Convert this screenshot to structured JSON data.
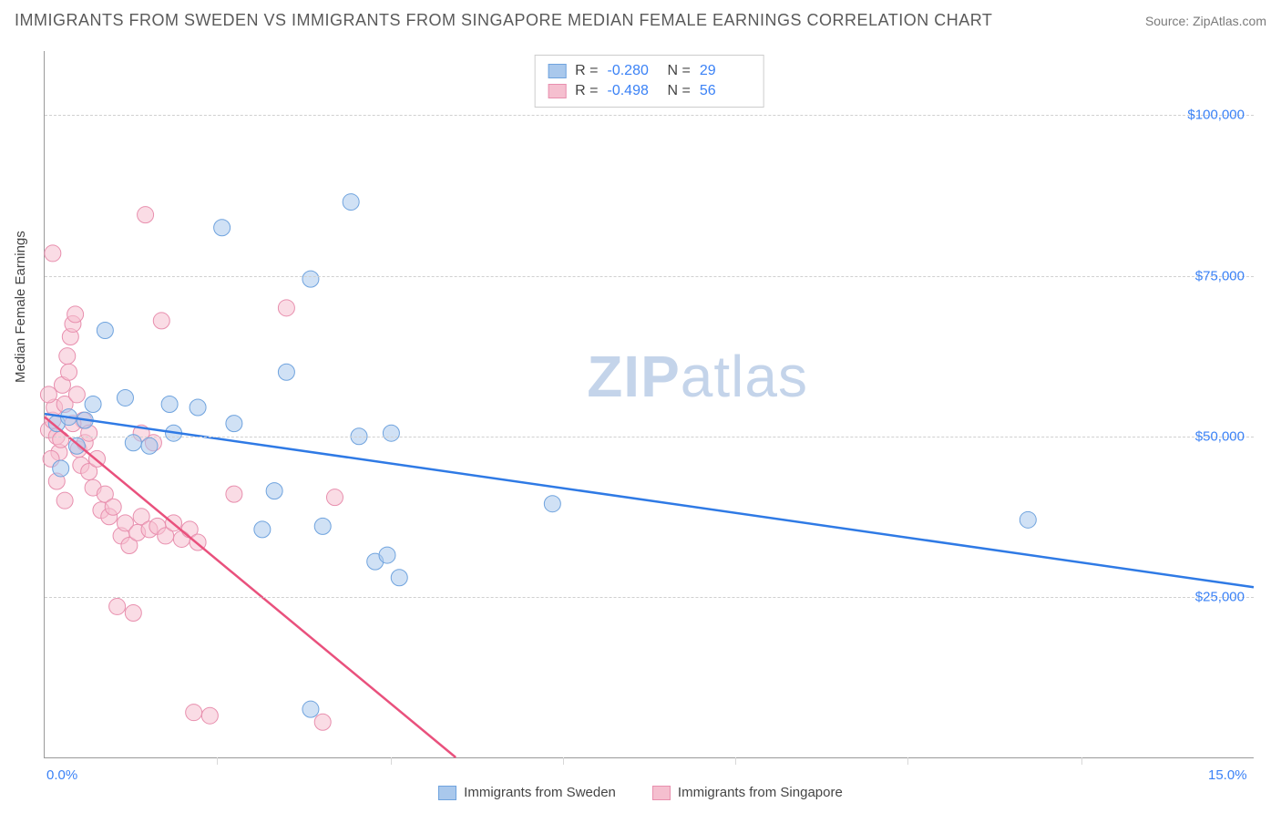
{
  "title": "IMMIGRANTS FROM SWEDEN VS IMMIGRANTS FROM SINGAPORE MEDIAN FEMALE EARNINGS CORRELATION CHART",
  "source_label": "Source: ",
  "source_name": "ZipAtlas.com",
  "watermark": {
    "bold": "ZIP",
    "rest": "atlas"
  },
  "y_axis_label": "Median Female Earnings",
  "chart": {
    "type": "scatter",
    "xlim": [
      0,
      15
    ],
    "ylim": [
      0,
      110000
    ],
    "x_ticks": [
      0,
      15
    ],
    "x_tick_labels": [
      "0.0%",
      "15.0%"
    ],
    "x_minor_ticks": [
      2.14,
      4.29,
      6.43,
      8.57,
      10.71,
      12.86
    ],
    "y_ticks": [
      25000,
      50000,
      75000,
      100000
    ],
    "y_tick_labels": [
      "$25,000",
      "$50,000",
      "$75,000",
      "$100,000"
    ],
    "grid_color": "#d0d0d0",
    "background_color": "#ffffff",
    "point_radius": 9,
    "point_opacity": 0.55,
    "line_width": 2.5,
    "series": [
      {
        "name": "Immigrants from Sweden",
        "color_fill": "#a9c8ec",
        "color_stroke": "#6fa3de",
        "line_color": "#2f7ae5",
        "R": "-0.280",
        "N": "29",
        "trend": {
          "x1": 0,
          "y1": 53500,
          "x2": 15,
          "y2": 26500
        },
        "points": [
          [
            0.15,
            52000
          ],
          [
            0.2,
            45000
          ],
          [
            0.3,
            53000
          ],
          [
            0.4,
            48500
          ],
          [
            0.5,
            52500
          ],
          [
            0.6,
            55000
          ],
          [
            0.75,
            66500
          ],
          [
            1.0,
            56000
          ],
          [
            1.1,
            49000
          ],
          [
            1.3,
            48500
          ],
          [
            1.55,
            55000
          ],
          [
            1.6,
            50500
          ],
          [
            1.9,
            54500
          ],
          [
            2.2,
            82500
          ],
          [
            2.35,
            52000
          ],
          [
            2.7,
            35500
          ],
          [
            2.85,
            41500
          ],
          [
            3.0,
            60000
          ],
          [
            3.3,
            74500
          ],
          [
            3.45,
            36000
          ],
          [
            3.8,
            86500
          ],
          [
            3.9,
            50000
          ],
          [
            4.1,
            30500
          ],
          [
            4.25,
            31500
          ],
          [
            4.4,
            28000
          ],
          [
            3.3,
            7500
          ],
          [
            4.3,
            50500
          ],
          [
            6.3,
            39500
          ],
          [
            12.2,
            37000
          ]
        ]
      },
      {
        "name": "Immigrants from Singapore",
        "color_fill": "#f5bfcf",
        "color_stroke": "#e88fae",
        "line_color": "#e9517d",
        "R": "-0.498",
        "N": "56",
        "trend": {
          "x1": 0,
          "y1": 53000,
          "x2": 5.1,
          "y2": 0
        },
        "points": [
          [
            0.05,
            51000
          ],
          [
            0.1,
            52500
          ],
          [
            0.12,
            54500
          ],
          [
            0.15,
            50000
          ],
          [
            0.18,
            47500
          ],
          [
            0.2,
            49500
          ],
          [
            0.22,
            58000
          ],
          [
            0.25,
            55000
          ],
          [
            0.28,
            62500
          ],
          [
            0.3,
            60000
          ],
          [
            0.32,
            65500
          ],
          [
            0.35,
            67500
          ],
          [
            0.38,
            69000
          ],
          [
            0.4,
            56500
          ],
          [
            0.42,
            48000
          ],
          [
            0.45,
            45500
          ],
          [
            0.48,
            52500
          ],
          [
            0.5,
            49000
          ],
          [
            0.55,
            44500
          ],
          [
            0.6,
            42000
          ],
          [
            0.65,
            46500
          ],
          [
            0.7,
            38500
          ],
          [
            0.75,
            41000
          ],
          [
            0.8,
            37500
          ],
          [
            0.85,
            39000
          ],
          [
            0.9,
            23500
          ],
          [
            0.95,
            34500
          ],
          [
            1.0,
            36500
          ],
          [
            1.05,
            33000
          ],
          [
            1.1,
            22500
          ],
          [
            1.15,
            35000
          ],
          [
            1.2,
            37500
          ],
          [
            1.25,
            84500
          ],
          [
            1.3,
            35500
          ],
          [
            1.35,
            49000
          ],
          [
            1.4,
            36000
          ],
          [
            1.45,
            68000
          ],
          [
            1.5,
            34500
          ],
          [
            1.6,
            36500
          ],
          [
            1.7,
            34000
          ],
          [
            1.8,
            35500
          ],
          [
            1.85,
            7000
          ],
          [
            1.9,
            33500
          ],
          [
            2.05,
            6500
          ],
          [
            2.35,
            41000
          ],
          [
            1.2,
            50500
          ],
          [
            0.1,
            78500
          ],
          [
            3.0,
            70000
          ],
          [
            3.45,
            5500
          ],
          [
            3.6,
            40500
          ],
          [
            0.05,
            56500
          ],
          [
            0.08,
            46500
          ],
          [
            0.15,
            43000
          ],
          [
            0.25,
            40000
          ],
          [
            0.35,
            52000
          ],
          [
            0.55,
            50500
          ]
        ]
      }
    ]
  },
  "stats_box": {
    "r_label": "R =",
    "n_label": "N ="
  },
  "legend": {
    "item1": "Immigrants from Sweden",
    "item2": "Immigrants from Singapore"
  }
}
